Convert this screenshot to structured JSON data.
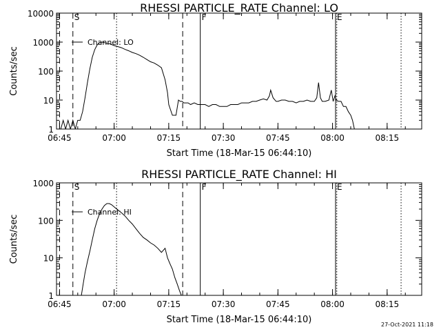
{
  "footer_stamp": "27-Oct-2021 11:18",
  "chart_data": [
    {
      "type": "line",
      "title": "RHESSI PARTICLE_RATE Channel: LO",
      "xlabel": "Start Time (18-Mar-15 06:44:10)",
      "ylabel": "Counts/sec",
      "yscale": "log",
      "ylim": [
        1,
        10000
      ],
      "xlim": [
        "06:44:10",
        "08:24:30"
      ],
      "xticks": [
        "06:45",
        "07:00",
        "07:15",
        "07:30",
        "07:45",
        "08:00",
        "08:15"
      ],
      "yticks": [
        "1",
        "10",
        "100",
        "1000",
        "10000"
      ],
      "legend": {
        "position": "top-left",
        "label": "Channel: LO"
      },
      "series": [
        {
          "name": "Channel: LO",
          "x": [
            "06:45:20",
            "06:46:00",
            "06:46:40",
            "06:47:20",
            "06:48:00",
            "06:48:40",
            "06:49:20",
            "06:50:00",
            "06:50:40",
            "06:51:20",
            "06:52:00",
            "06:52:40",
            "06:53:20",
            "06:54:00",
            "06:54:40",
            "06:55:20",
            "06:56:00",
            "06:56:40",
            "06:57:20",
            "06:58:00",
            "06:58:40",
            "06:59:20",
            "07:00:00",
            "07:01:00",
            "07:02:00",
            "07:03:00",
            "07:04:00",
            "07:05:00",
            "07:06:00",
            "07:07:00",
            "07:08:00",
            "07:09:00",
            "07:10:00",
            "07:11:00",
            "07:12:00",
            "07:13:00",
            "07:14:00",
            "07:14:40",
            "07:15:00",
            "07:16:00",
            "07:17:00",
            "07:17:40",
            "07:18:10",
            "07:18:40",
            "07:19:10",
            "07:19:40",
            "07:20:20",
            "07:21:00",
            "07:22:00",
            "07:23:00",
            "07:24:00",
            "07:25:00",
            "07:26:00",
            "07:27:00",
            "07:28:00",
            "07:29:00",
            "07:30:00",
            "07:31:00",
            "07:32:00",
            "07:33:00",
            "07:34:00",
            "07:35:00",
            "07:36:00",
            "07:37:00",
            "07:38:00",
            "07:39:00",
            "07:40:00",
            "07:41:00",
            "07:42:00",
            "07:42:40",
            "07:43:00",
            "07:43:40",
            "07:44:30",
            "07:45:00",
            "07:46:00",
            "07:47:00",
            "07:48:00",
            "07:49:00",
            "07:50:00",
            "07:51:00",
            "07:52:00",
            "07:53:00",
            "07:54:00",
            "07:55:00",
            "07:55:40",
            "07:56:10",
            "07:56:40",
            "07:57:10",
            "07:58:00",
            "07:59:00",
            "07:59:40",
            "08:00:10",
            "08:00:40",
            "08:01:00",
            "08:01:40",
            "08:02:20",
            "08:03:00",
            "08:03:40",
            "08:04:20",
            "08:05:00",
            "08:05:30",
            "08:06:00",
            "08:06:40",
            "08:07:20",
            "08:08:00",
            "08:08:40",
            "08:09:20",
            "08:10:00",
            "08:10:40",
            "08:11:20",
            "08:12:00",
            "08:12:40",
            "08:13:20",
            "08:14:00",
            "08:14:40",
            "08:15:20",
            "08:16:00",
            "08:16:40",
            "08:17:20",
            "08:18:00",
            "08:18:40",
            "08:19:20",
            "08:20:00",
            "08:20:40",
            "08:21:20",
            "08:22:00",
            "08:22:40",
            "08:23:20",
            "08:24:00"
          ],
          "y": [
            1,
            2,
            1,
            2,
            1,
            2,
            1,
            2,
            2,
            4,
            12,
            40,
            120,
            300,
            550,
            800,
            950,
            1000,
            960,
            900,
            880,
            820,
            760,
            700,
            640,
            560,
            500,
            440,
            400,
            350,
            300,
            250,
            210,
            190,
            160,
            130,
            50,
            18,
            7,
            3,
            3,
            10,
            9,
            9,
            8,
            8,
            8,
            7,
            8,
            7,
            7,
            7,
            6,
            7,
            7,
            6,
            6,
            6,
            7,
            7,
            7,
            8,
            8,
            8,
            9,
            9,
            10,
            11,
            10,
            14,
            22,
            12,
            9,
            9,
            10,
            10,
            9,
            9,
            8,
            9,
            9,
            10,
            9,
            9,
            12,
            40,
            12,
            9,
            9,
            10,
            22,
            9,
            14,
            10,
            9,
            9,
            6,
            6,
            4,
            3,
            2,
            1,
            1,
            1,
            1,
            1,
            1,
            1,
            1,
            1,
            1,
            1,
            1,
            1,
            1,
            1,
            1,
            1,
            1,
            1,
            1,
            1,
            1,
            1,
            1,
            1,
            1,
            1,
            1
          ]
        }
      ],
      "annotations": {
        "lines": [
          {
            "label": "",
            "time": "06:45:00",
            "style": "dashed"
          },
          {
            "label": "S",
            "time": "06:48:40",
            "style": "dashed"
          },
          {
            "label": "",
            "time": "07:00:40",
            "style": "dotted"
          },
          {
            "label": "",
            "time": "07:18:50",
            "style": "dashed"
          },
          {
            "label": "F",
            "time": "07:23:40",
            "style": "solid"
          },
          {
            "label": "E",
            "time": "08:00:50",
            "style": "solid"
          },
          {
            "label": "",
            "time": "08:01:10",
            "style": "dotted"
          },
          {
            "label": "",
            "time": "08:18:50",
            "style": "dotted"
          }
        ]
      }
    },
    {
      "type": "line",
      "title": "RHESSI PARTICLE_RATE Channel: HI",
      "xlabel": "Start Time (18-Mar-15 06:44:10)",
      "ylabel": "Counts/sec",
      "yscale": "log",
      "ylim": [
        1,
        1000
      ],
      "xlim": [
        "06:44:10",
        "08:24:30"
      ],
      "xticks": [
        "06:45",
        "07:00",
        "07:15",
        "07:30",
        "07:45",
        "08:00",
        "08:15"
      ],
      "yticks": [
        "1",
        "10",
        "100",
        "1000"
      ],
      "legend": {
        "position": "top-left",
        "label": "Channel: HI"
      },
      "series": [
        {
          "name": "Channel: HI",
          "x": [
            "06:50:30",
            "06:51:00",
            "06:51:30",
            "06:52:00",
            "06:52:40",
            "06:53:20",
            "06:54:00",
            "06:54:40",
            "06:55:20",
            "06:56:00",
            "06:56:40",
            "06:57:20",
            "06:58:00",
            "06:58:40",
            "06:59:20",
            "07:00:00",
            "07:01:00",
            "07:02:00",
            "07:03:00",
            "07:04:00",
            "07:05:00",
            "07:06:00",
            "07:07:00",
            "07:08:00",
            "07:09:00",
            "07:10:00",
            "07:11:00",
            "07:12:00",
            "07:13:00",
            "07:14:00",
            "07:14:40",
            "07:15:20",
            "07:16:00",
            "07:16:40",
            "07:17:20",
            "07:18:00",
            "07:18:40"
          ],
          "y": [
            0.9,
            1,
            2,
            4,
            8,
            15,
            30,
            60,
            100,
            150,
            200,
            250,
            280,
            280,
            260,
            230,
            190,
            160,
            130,
            100,
            80,
            60,
            45,
            35,
            30,
            25,
            22,
            18,
            14,
            18,
            10,
            7,
            5,
            3,
            2,
            1.3,
            0.9
          ]
        }
      ],
      "annotations": {
        "lines": [
          {
            "label": "",
            "time": "06:45:00",
            "style": "dashed"
          },
          {
            "label": "S",
            "time": "06:48:40",
            "style": "dashed"
          },
          {
            "label": "",
            "time": "07:00:40",
            "style": "dotted"
          },
          {
            "label": "",
            "time": "07:18:50",
            "style": "dashed"
          },
          {
            "label": "F",
            "time": "07:23:40",
            "style": "solid"
          },
          {
            "label": "E",
            "time": "08:00:50",
            "style": "solid"
          },
          {
            "label": "",
            "time": "08:01:10",
            "style": "dotted"
          },
          {
            "label": "",
            "time": "08:18:50",
            "style": "dotted"
          }
        ]
      }
    }
  ]
}
